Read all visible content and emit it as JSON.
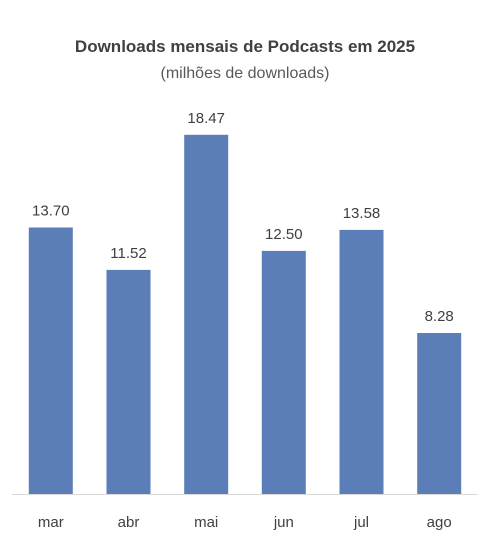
{
  "chart_data": {
    "type": "bar",
    "title": "Downloads mensais de Podcasts em 2025",
    "subtitle": "(milhões de downloads)",
    "categories": [
      "mar",
      "abr",
      "mai",
      "jun",
      "jul",
      "ago"
    ],
    "values": [
      13.7,
      11.52,
      18.47,
      12.5,
      13.58,
      8.28
    ],
    "data_labels": [
      "13.70",
      "11.52",
      "18.47",
      "12.50",
      "13.58",
      "8.28"
    ],
    "ylim": [
      0,
      20
    ],
    "grid": false,
    "legend": "none",
    "bar_color": "#5B7DB8",
    "axis_color": "#D9D9D9"
  }
}
